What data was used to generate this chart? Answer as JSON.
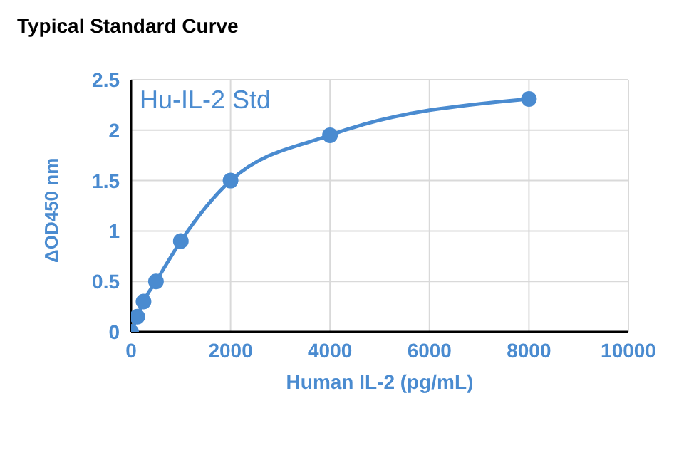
{
  "chart_data": {
    "type": "line",
    "title": "Typical Standard Curve",
    "xlabel": "Human IL-2 (pg/mL)",
    "ylabel": "ΔOD450 nm",
    "x": [
      0,
      125,
      250,
      500,
      1000,
      2000,
      4000,
      8000
    ],
    "series": [
      {
        "name": "Hu-IL-2 Std",
        "color": "#4a8bd0",
        "values": [
          0,
          0.15,
          0.3,
          0.5,
          0.9,
          1.5,
          1.95,
          2.31
        ]
      }
    ],
    "xlim": [
      0,
      10000
    ],
    "xticks": [
      0,
      2000,
      4000,
      6000,
      8000,
      10000
    ],
    "ylim": [
      0,
      2.5
    ],
    "yticks": [
      0,
      0.5,
      1,
      1.5,
      2,
      2.5
    ],
    "grid": true,
    "marker": "circle",
    "line_style": "solid"
  }
}
